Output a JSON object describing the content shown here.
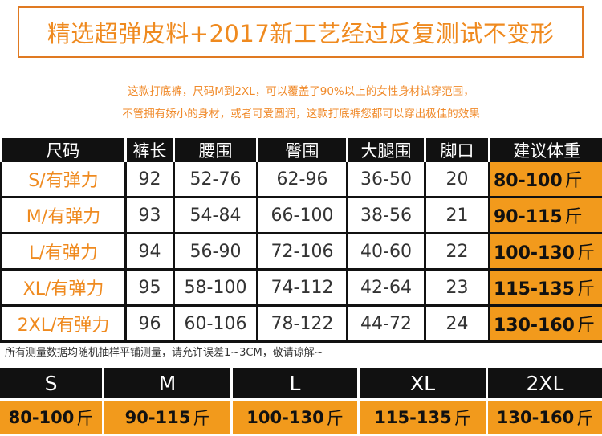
{
  "banner": {
    "text": "精选超弹皮料+2017新工艺经过反复测试不变形"
  },
  "description": {
    "line1": "这款打底裤，尺码M到2XL，可以覆盖了90%以上的女性身材试穿范围，",
    "line2": "不管拥有娇小的身材，或者可爱圆润，这款打底裤您都可以穿出极佳的效果"
  },
  "size_table": {
    "headers": [
      "尺码",
      "裤长",
      "腰围",
      "臀围",
      "大腿围",
      "脚口",
      "建议体重"
    ],
    "rows": [
      {
        "size": "S/有弹力",
        "length": "92",
        "waist": "52-76",
        "hip": "62-96",
        "thigh": "36-50",
        "hem": "20",
        "weight": "80-100",
        "unit": "斤"
      },
      {
        "size": "M/有弹力",
        "length": "93",
        "waist": "54-84",
        "hip": "66-100",
        "thigh": "38-56",
        "hem": "21",
        "weight": "90-115",
        "unit": "斤"
      },
      {
        "size": "L/有弹力",
        "length": "94",
        "waist": "56-90",
        "hip": "72-106",
        "thigh": "40-60",
        "hem": "22",
        "weight": "100-130",
        "unit": "斤"
      },
      {
        "size": "XL/有弹力",
        "length": "95",
        "waist": "58-100",
        "hip": "74-112",
        "thigh": "42-64",
        "hem": "23",
        "weight": "115-135",
        "unit": "斤"
      },
      {
        "size": "2XL/有弹力",
        "length": "96",
        "waist": "60-106",
        "hip": "78-122",
        "thigh": "44-72",
        "hem": "24",
        "weight": "130-160",
        "unit": "斤"
      }
    ]
  },
  "note": {
    "text": "所有测量数据均随机抽样平铺测量，请允许误差1~3CM，敬请谅解~"
  },
  "size_strip": [
    {
      "label": "S",
      "weight": "80-100",
      "unit": "斤"
    },
    {
      "label": "M",
      "weight": "90-115",
      "unit": "斤"
    },
    {
      "label": "L",
      "weight": "100-130",
      "unit": "斤"
    },
    {
      "label": "XL",
      "weight": "115-135",
      "unit": "斤"
    },
    {
      "label": "2XL",
      "weight": "130-160",
      "unit": "斤"
    }
  ],
  "colors": {
    "accent": "#f29a1c",
    "header": "#111111",
    "text_orange": "#ef8a1f"
  }
}
